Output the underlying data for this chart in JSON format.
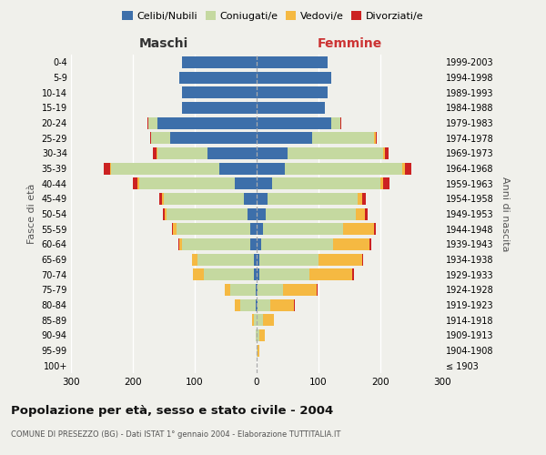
{
  "age_groups": [
    "100+",
    "95-99",
    "90-94",
    "85-89",
    "80-84",
    "75-79",
    "70-74",
    "65-69",
    "60-64",
    "55-59",
    "50-54",
    "45-49",
    "40-44",
    "35-39",
    "30-34",
    "25-29",
    "20-24",
    "15-19",
    "10-14",
    "5-9",
    "0-4"
  ],
  "birth_years": [
    "≤ 1903",
    "1904-1908",
    "1909-1913",
    "1914-1918",
    "1919-1923",
    "1924-1928",
    "1929-1933",
    "1934-1938",
    "1939-1943",
    "1944-1948",
    "1949-1953",
    "1954-1958",
    "1959-1963",
    "1964-1968",
    "1969-1973",
    "1974-1978",
    "1979-1983",
    "1984-1988",
    "1989-1993",
    "1994-1998",
    "1999-2003"
  ],
  "males": {
    "celibi": [
      0,
      0,
      0,
      0,
      2,
      2,
      5,
      5,
      10,
      10,
      15,
      20,
      35,
      60,
      80,
      140,
      160,
      120,
      120,
      125,
      120
    ],
    "coniugati": [
      0,
      0,
      2,
      5,
      25,
      40,
      80,
      90,
      110,
      120,
      130,
      130,
      155,
      175,
      80,
      30,
      15,
      0,
      0,
      0,
      0
    ],
    "vedovi": [
      0,
      0,
      0,
      2,
      8,
      10,
      18,
      10,
      5,
      5,
      3,
      3,
      2,
      2,
      2,
      0,
      0,
      0,
      0,
      0,
      0
    ],
    "divorziati": [
      0,
      0,
      0,
      0,
      0,
      0,
      0,
      0,
      2,
      2,
      3,
      5,
      8,
      10,
      5,
      2,
      2,
      0,
      0,
      0,
      0
    ]
  },
  "females": {
    "nubili": [
      0,
      0,
      0,
      0,
      2,
      2,
      5,
      5,
      8,
      10,
      15,
      18,
      25,
      45,
      50,
      90,
      120,
      110,
      115,
      120,
      115
    ],
    "coniugate": [
      0,
      2,
      5,
      10,
      20,
      40,
      80,
      95,
      115,
      130,
      145,
      145,
      175,
      190,
      155,
      100,
      15,
      0,
      0,
      0,
      0
    ],
    "vedove": [
      0,
      2,
      8,
      18,
      38,
      55,
      70,
      70,
      60,
      50,
      15,
      8,
      5,
      5,
      3,
      2,
      0,
      0,
      0,
      0,
      0
    ],
    "divorziate": [
      0,
      0,
      0,
      0,
      2,
      2,
      2,
      2,
      2,
      3,
      5,
      5,
      10,
      10,
      5,
      2,
      2,
      0,
      0,
      0,
      0
    ]
  },
  "colors": {
    "celibi_nubili": "#3d6faa",
    "coniugati": "#c5d9a0",
    "vedovi": "#f5b942",
    "divorziati": "#cc2222"
  },
  "xlim": 300,
  "title": "Popolazione per età, sesso e stato civile - 2004",
  "subtitle": "COMUNE DI PRESEZZO (BG) - Dati ISTAT 1° gennaio 2004 - Elaborazione TUTTITALIA.IT",
  "xlabel_left": "Maschi",
  "xlabel_right": "Femmine",
  "ylabel_left": "Fasce di età",
  "ylabel_right": "Anni di nascita",
  "legend_labels": [
    "Celibi/Nubili",
    "Coniugati/e",
    "Vedovi/e",
    "Divorziati/e"
  ],
  "bg_color": "#f0f0eb"
}
